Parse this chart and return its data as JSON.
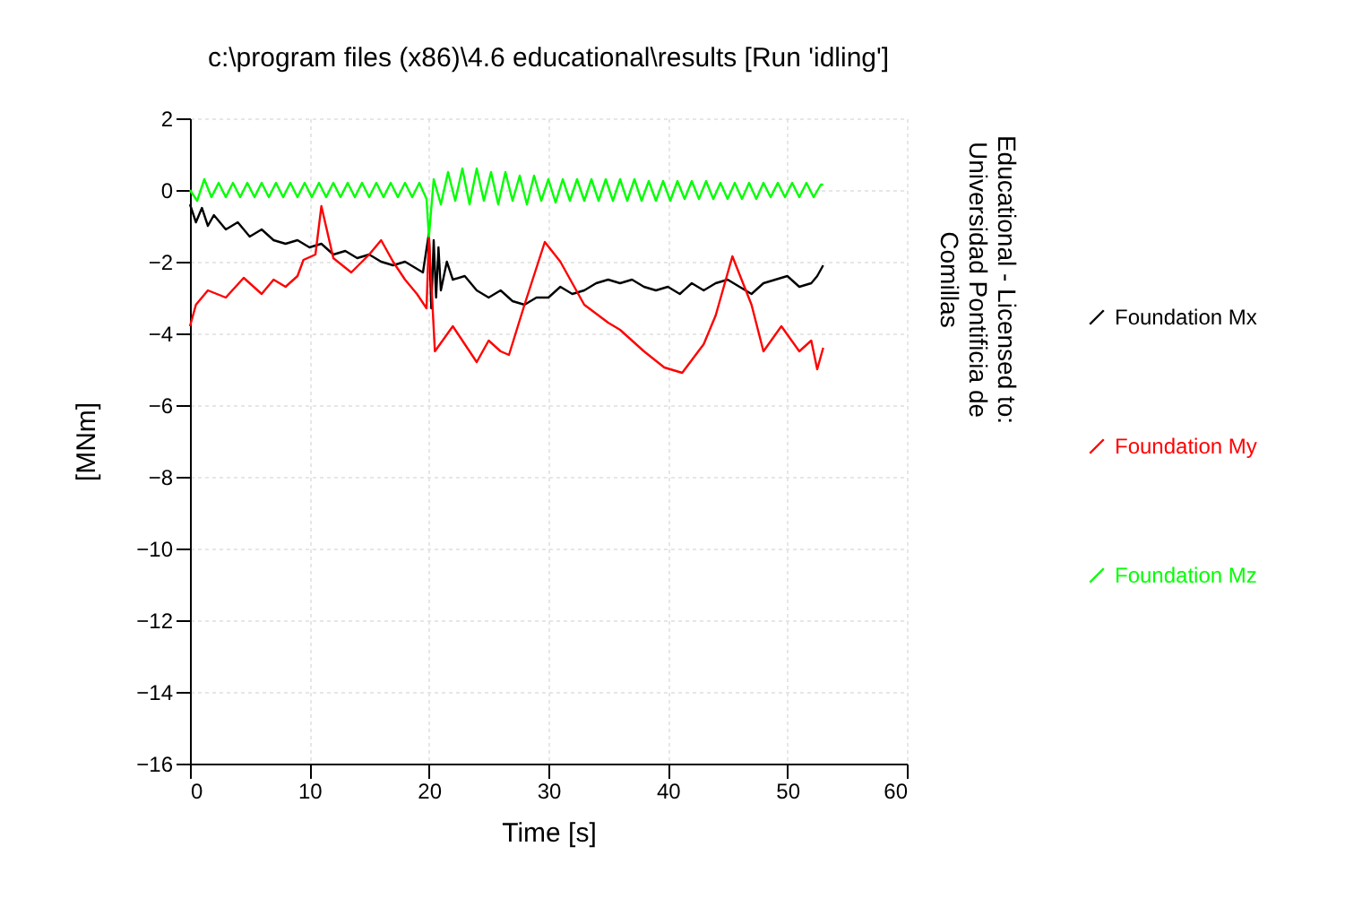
{
  "chart_data": {
    "type": "line",
    "title": "c:\\program files (x86)\\4.6 educational\\results [Run 'idling']",
    "xlabel": "Time [s]",
    "ylabel": "[MNm]",
    "annotations": [
      "Educational - Licensed to: Universidad Pontificia de Comillas"
    ],
    "xlim": [
      0,
      60
    ],
    "xticks": [
      0,
      10,
      20,
      30,
      40,
      50,
      60
    ],
    "ylim": [
      -16,
      2
    ],
    "yticks": [
      -16,
      -14,
      -12,
      -10,
      -8,
      -6,
      -4,
      -2,
      0,
      2
    ],
    "grid": true,
    "legend": "right",
    "line_style": "solid",
    "series": [
      {
        "name": "Foundation Mx",
        "color": "#000000",
        "x": [
          0,
          0.5,
          1,
          1.5,
          2,
          3,
          4,
          5,
          6,
          7,
          8,
          9,
          10,
          11,
          12,
          13,
          14,
          15,
          16,
          17,
          18,
          19,
          19.5,
          20,
          20.2,
          20.4,
          20.6,
          20.8,
          21,
          21.5,
          22,
          23,
          24,
          25,
          26,
          27,
          28,
          29,
          30,
          31,
          32,
          33,
          34,
          35,
          36,
          37,
          38,
          39,
          40,
          41,
          42,
          43,
          44,
          45,
          46,
          47,
          48,
          49,
          50,
          51,
          52,
          52.5,
          53
        ],
        "values": [
          -0.4,
          -0.9,
          -0.5,
          -1.0,
          -0.7,
          -1.1,
          -0.9,
          -1.3,
          -1.1,
          -1.4,
          -1.5,
          -1.4,
          -1.6,
          -1.5,
          -1.8,
          -1.7,
          -1.9,
          -1.8,
          -2.0,
          -2.1,
          -2.0,
          -2.2,
          -2.3,
          -1.2,
          -3.3,
          -1.4,
          -3.0,
          -1.6,
          -2.8,
          -2.0,
          -2.5,
          -2.4,
          -2.8,
          -3.0,
          -2.8,
          -3.1,
          -3.2,
          -3.0,
          -3.0,
          -2.7,
          -2.9,
          -2.8,
          -2.6,
          -2.5,
          -2.6,
          -2.5,
          -2.7,
          -2.8,
          -2.7,
          -2.9,
          -2.6,
          -2.8,
          -2.6,
          -2.5,
          -2.7,
          -2.9,
          -2.6,
          -2.5,
          -2.4,
          -2.7,
          -2.6,
          -2.4,
          -2.1
        ]
      },
      {
        "name": "Foundation My",
        "color": "#ff0000",
        "x": [
          0,
          0.5,
          1.5,
          3,
          4.5,
          6,
          7,
          8,
          9,
          9.5,
          10.5,
          11,
          12,
          13.5,
          15,
          16,
          17,
          18,
          19,
          19.8,
          20,
          20.5,
          22,
          23,
          24,
          25,
          26,
          26.7,
          28,
          29.7,
          31,
          32,
          33,
          35,
          36,
          38,
          39.7,
          41.2,
          43,
          44,
          45.4,
          47,
          48,
          49.5,
          51,
          52,
          52.5,
          53
        ],
        "values": [
          -3.8,
          -3.2,
          -2.8,
          -3.0,
          -2.45,
          -2.9,
          -2.5,
          -2.7,
          -2.4,
          -1.95,
          -1.8,
          -0.45,
          -1.9,
          -2.3,
          -1.8,
          -1.4,
          -2.0,
          -2.5,
          -2.9,
          -3.3,
          -1.3,
          -4.5,
          -3.8,
          -4.3,
          -4.8,
          -4.2,
          -4.5,
          -4.6,
          -3.2,
          -1.45,
          -2.0,
          -2.6,
          -3.2,
          -3.7,
          -3.9,
          -4.5,
          -4.95,
          -5.1,
          -4.3,
          -3.5,
          -1.85,
          -3.2,
          -4.5,
          -3.8,
          -4.5,
          -4.2,
          -5.0,
          -4.4
        ]
      },
      {
        "name": "Foundation Mz",
        "color": "#00ff00",
        "x": [
          0,
          0.6,
          1.2,
          1.8,
          2.4,
          3.0,
          3.6,
          4.2,
          4.8,
          5.4,
          6.0,
          6.6,
          7.2,
          7.8,
          8.4,
          9.0,
          9.6,
          10.2,
          10.8,
          11.4,
          12.0,
          12.6,
          13.2,
          13.8,
          14.4,
          15.0,
          15.6,
          16.2,
          16.8,
          17.4,
          18.0,
          18.6,
          19.2,
          19.8,
          20.0,
          20.4,
          21.0,
          21.6,
          22.2,
          22.8,
          23.4,
          24.0,
          24.6,
          25.2,
          25.8,
          26.4,
          27.0,
          27.6,
          28.2,
          28.8,
          29.4,
          30.0,
          30.6,
          31.2,
          31.8,
          32.4,
          33.0,
          33.6,
          34.2,
          34.8,
          35.4,
          36.0,
          36.6,
          37.2,
          37.8,
          38.4,
          39.0,
          39.6,
          40.2,
          40.8,
          41.4,
          42.0,
          42.6,
          43.2,
          43.8,
          44.4,
          45.0,
          45.6,
          46.2,
          46.8,
          47.4,
          48.0,
          48.6,
          49.2,
          49.8,
          50.4,
          51.0,
          51.6,
          52.2,
          52.8,
          53.0
        ],
        "values": [
          0.0,
          -0.3,
          0.3,
          -0.2,
          0.2,
          -0.2,
          0.2,
          -0.2,
          0.2,
          -0.2,
          0.2,
          -0.2,
          0.2,
          -0.2,
          0.2,
          -0.2,
          0.2,
          -0.2,
          0.2,
          -0.2,
          0.2,
          -0.2,
          0.2,
          -0.2,
          0.2,
          -0.2,
          0.2,
          -0.2,
          0.2,
          -0.2,
          0.2,
          -0.2,
          0.2,
          -0.25,
          -1.3,
          0.3,
          -0.4,
          0.5,
          -0.3,
          0.6,
          -0.4,
          0.6,
          -0.3,
          0.5,
          -0.4,
          0.5,
          -0.3,
          0.4,
          -0.4,
          0.4,
          -0.3,
          0.3,
          -0.35,
          0.3,
          -0.3,
          0.3,
          -0.3,
          0.3,
          -0.3,
          0.3,
          -0.3,
          0.3,
          -0.3,
          0.3,
          -0.3,
          0.25,
          -0.3,
          0.25,
          -0.3,
          0.25,
          -0.25,
          0.25,
          -0.25,
          0.25,
          -0.25,
          0.2,
          -0.25,
          0.2,
          -0.25,
          0.2,
          -0.25,
          0.2,
          -0.2,
          0.2,
          -0.2,
          0.2,
          -0.2,
          0.2,
          -0.2,
          0.15,
          0.15
        ]
      }
    ]
  }
}
